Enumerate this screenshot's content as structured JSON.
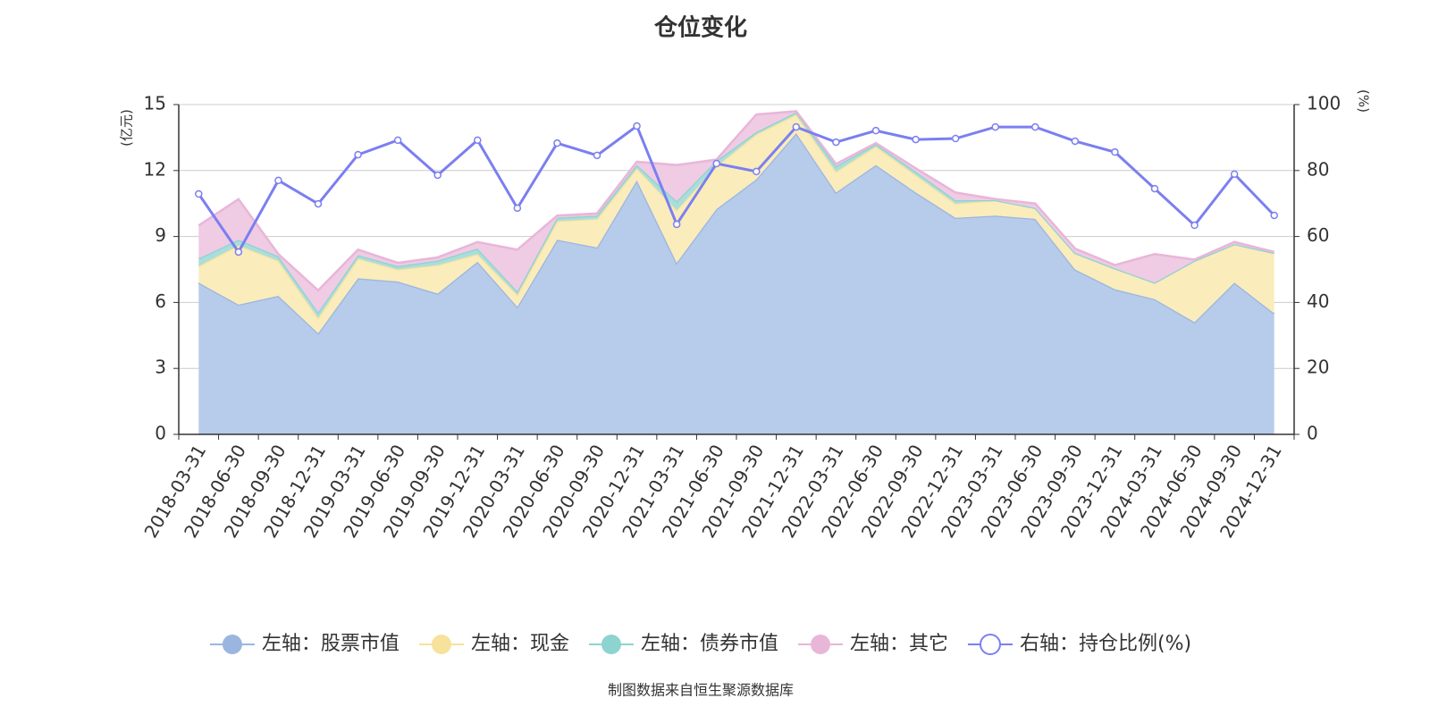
{
  "chart_data": {
    "type": "area",
    "stacked": true,
    "title": "仓位变化",
    "y_label": "(亿元)",
    "y2_label": "(%)",
    "axis_label_color": "#e8000b",
    "source": "制图数据来自恒生聚源数据库",
    "source_color": "#c9962c",
    "categories": [
      "2018-03-31",
      "2018-06-30",
      "2018-09-30",
      "2018-12-31",
      "2019-03-31",
      "2019-06-30",
      "2019-09-30",
      "2019-12-31",
      "2020-03-31",
      "2020-06-30",
      "2020-09-30",
      "2020-12-31",
      "2021-03-31",
      "2021-06-30",
      "2021-09-30",
      "2021-12-31",
      "2022-03-31",
      "2022-06-30",
      "2022-09-30",
      "2022-12-31",
      "2023-03-31",
      "2023-06-30",
      "2023-09-30",
      "2023-12-31",
      "2024-03-31",
      "2024-06-30",
      "2024-09-30",
      "2024-12-31"
    ],
    "ylim": [
      0,
      15
    ],
    "yticks": [
      0,
      3,
      6,
      9,
      12,
      15
    ],
    "y2lim": [
      0,
      100
    ],
    "y2ticks": [
      0,
      20,
      40,
      60,
      80,
      100
    ],
    "grid": true,
    "legend": "bottom",
    "series": [
      {
        "name": "左轴：股票市值",
        "color": "#9ab5e0",
        "fill": "#b7cbea",
        "values": [
          6.9,
          5.9,
          6.3,
          4.6,
          7.1,
          6.95,
          6.4,
          7.85,
          5.8,
          8.85,
          8.5,
          11.55,
          7.8,
          10.25,
          11.6,
          13.7,
          11.0,
          12.25,
          11.0,
          9.85,
          9.95,
          9.8,
          7.5,
          6.6,
          6.15,
          5.1,
          6.9,
          5.5
        ]
      },
      {
        "name": "左轴：现金",
        "color": "#f7e29c",
        "fill": "#faecbb",
        "values": [
          0.75,
          2.7,
          1.6,
          0.7,
          0.9,
          0.55,
          1.3,
          0.35,
          0.55,
          0.85,
          1.3,
          0.55,
          2.4,
          1.95,
          2.05,
          0.85,
          0.95,
          0.85,
          0.8,
          0.65,
          0.7,
          0.5,
          0.75,
          0.95,
          0.75,
          2.8,
          1.75,
          2.75
        ]
      },
      {
        "name": "左轴：债券市值",
        "color": "#8dd3d0",
        "fill": "#a9dedc",
        "values": [
          0.35,
          0.25,
          0.2,
          0.25,
          0.15,
          0.15,
          0.2,
          0.25,
          0.15,
          0.15,
          0.15,
          0.15,
          0.4,
          0.25,
          0.1,
          0.1,
          0.25,
          0.1,
          0.15,
          0.15,
          0,
          0,
          0,
          0,
          0,
          0,
          0,
          0
        ]
      },
      {
        "name": "左轴：其它",
        "color": "#e8b6d8",
        "fill": "#efcbe4",
        "values": [
          1.5,
          1.85,
          0.1,
          1.0,
          0.25,
          0.15,
          0.15,
          0.3,
          1.9,
          0.1,
          0.1,
          0.15,
          1.65,
          0.05,
          0.8,
          0.05,
          0.1,
          0.05,
          0.15,
          0.35,
          0.05,
          0.2,
          0.2,
          0.15,
          1.3,
          0.05,
          0.1,
          0.05
        ]
      },
      {
        "name": "右轴：持仓比例(%)",
        "type": "line",
        "axis": "y2",
        "color": "#7b7ff0",
        "values": [
          72.9,
          55.3,
          77,
          69.9,
          84.8,
          89.2,
          78.6,
          89.2,
          68.6,
          88.3,
          84.6,
          93.5,
          63.7,
          82.1,
          79.7,
          93.2,
          88.6,
          92.1,
          89.4,
          89.7,
          93.2,
          93.2,
          88.9,
          85.6,
          74.5,
          63.4,
          78.9,
          66.4
        ]
      }
    ]
  }
}
